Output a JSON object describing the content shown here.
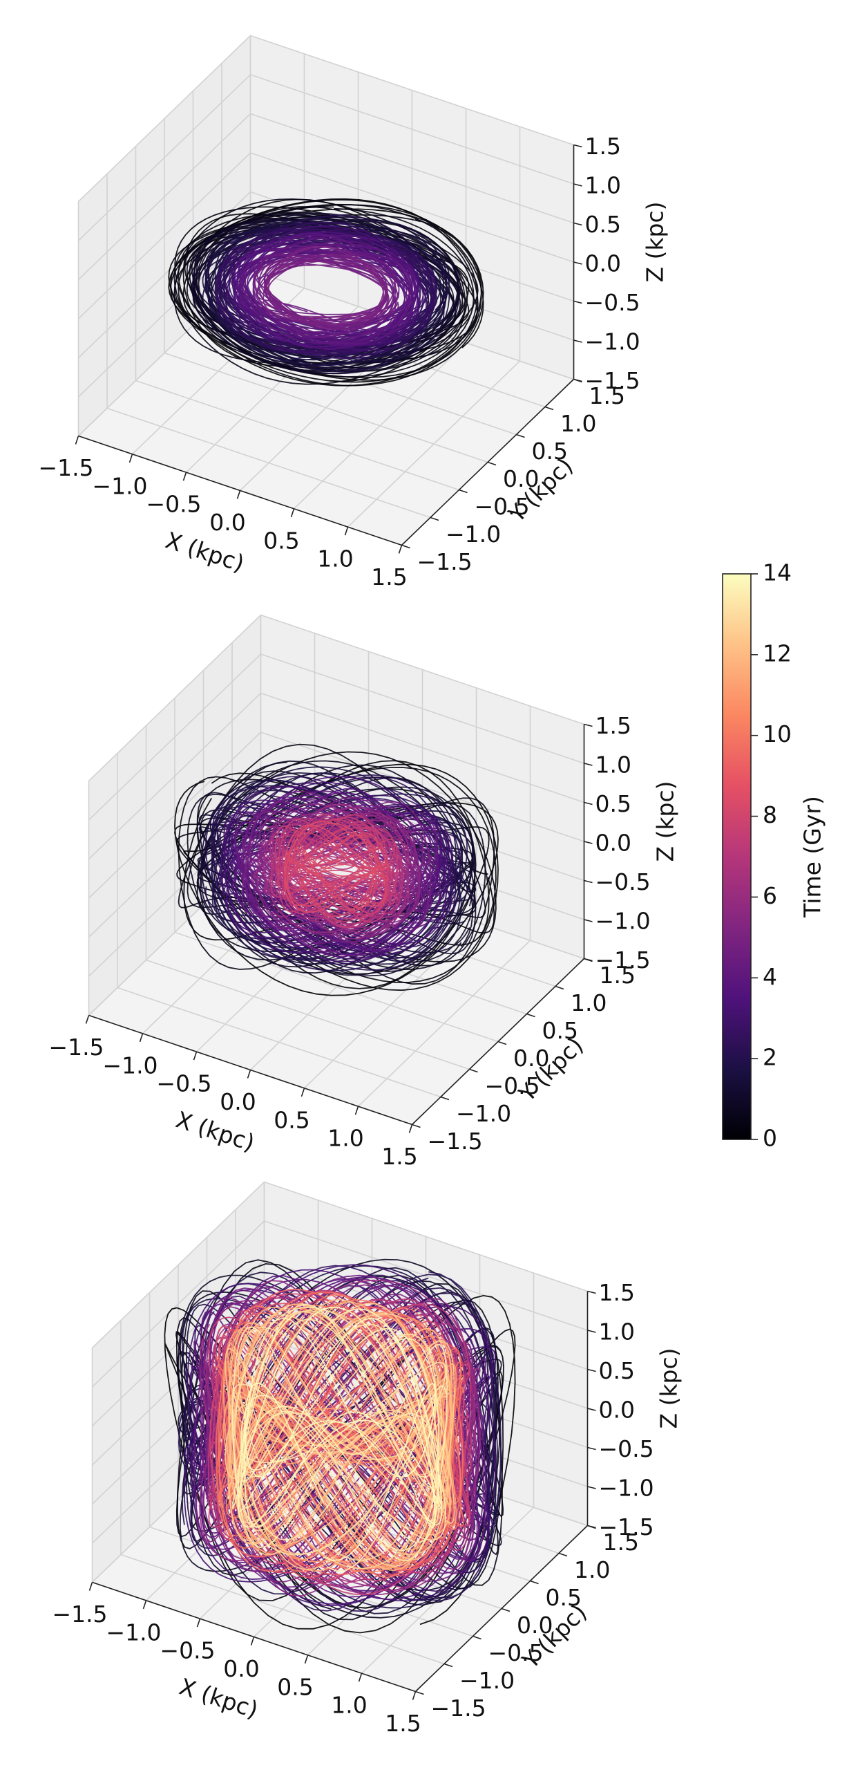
{
  "chart_data": [
    {
      "type": "orbit3d",
      "xlabel": "X (kpc)",
      "ylabel": "Y (kpc)",
      "zlabel": "Z (kpc)",
      "xlim": [
        -1.5,
        1.5
      ],
      "ylim": [
        -1.5,
        1.5
      ],
      "zlim": [
        -1.5,
        1.5
      ],
      "xticks": [
        {
          "value": -1.5,
          "label": "−1.5"
        },
        {
          "value": -1,
          "label": "−1.0"
        },
        {
          "value": -0.5,
          "label": "−0.5"
        },
        {
          "value": 0,
          "label": "0.0"
        },
        0.5,
        {
          "value": 1,
          "label": "1.0"
        },
        1.5
      ],
      "yticks": [
        {
          "value": -1.5,
          "label": "−1.5"
        },
        {
          "value": -1,
          "label": "−1.0"
        },
        {
          "value": -0.5,
          "label": "−0.5"
        },
        {
          "value": 0,
          "label": "0.0"
        },
        0.5,
        {
          "value": 1,
          "label": "1.0"
        },
        1.5
      ],
      "zticks": [
        {
          "value": -1.5,
          "label": "−1.5"
        },
        {
          "value": -1,
          "label": "−1.0"
        },
        {
          "value": -0.5,
          "label": "−0.5"
        },
        {
          "value": 0,
          "label": "0.0"
        },
        0.5,
        {
          "value": 1,
          "label": "1.0"
        },
        1.5
      ]
    },
    {
      "type": "orbit3d",
      "xlabel": "X (kpc)",
      "ylabel": "Y (kpc)",
      "zlabel": "Z (kpc)",
      "xlim": [
        -1.5,
        1.5
      ],
      "ylim": [
        -1.5,
        1.5
      ],
      "zlim": [
        -1.5,
        1.5
      ],
      "xticks": [
        {
          "value": -1.5,
          "label": "−1.5"
        },
        {
          "value": -1,
          "label": "−1.0"
        },
        {
          "value": -0.5,
          "label": "−0.5"
        },
        {
          "value": 0,
          "label": "0.0"
        },
        0.5,
        {
          "value": 1,
          "label": "1.0"
        },
        1.5
      ],
      "yticks": [
        {
          "value": -1.5,
          "label": "−1.5"
        },
        {
          "value": -1,
          "label": "−1.0"
        },
        {
          "value": -0.5,
          "label": "−0.5"
        },
        {
          "value": 0,
          "label": "0.0"
        },
        0.5,
        {
          "value": 1,
          "label": "1.0"
        },
        1.5
      ],
      "zticks": [
        {
          "value": -1.5,
          "label": "−1.5"
        },
        {
          "value": -1,
          "label": "−1.0"
        },
        {
          "value": -0.5,
          "label": "−0.5"
        },
        {
          "value": 0,
          "label": "0.0"
        },
        0.5,
        {
          "value": 1,
          "label": "1.0"
        },
        1.5
      ]
    },
    {
      "type": "orbit3d",
      "xlabel": "X (kpc)",
      "ylabel": "Y (kpc)",
      "zlabel": "Z (kpc)",
      "xlim": [
        -1.5,
        1.5
      ],
      "ylim": [
        -1.5,
        1.5
      ],
      "zlim": [
        -1.5,
        1.5
      ],
      "xticks": [
        {
          "value": -1.5,
          "label": "−1.5"
        },
        {
          "value": -1,
          "label": "−1.0"
        },
        {
          "value": -0.5,
          "label": "−0.5"
        },
        {
          "value": 0,
          "label": "0.0"
        },
        0.5,
        {
          "value": 1,
          "label": "1.0"
        },
        1.5
      ],
      "yticks": [
        {
          "value": -1.5,
          "label": "−1.5"
        },
        {
          "value": -1,
          "label": "−1.0"
        },
        {
          "value": -0.5,
          "label": "−0.5"
        },
        {
          "value": 0,
          "label": "0.0"
        },
        0.5,
        {
          "value": 1,
          "label": "1.0"
        },
        1.5
      ],
      "zticks": [
        {
          "value": -1.5,
          "label": "−1.5"
        },
        {
          "value": -1,
          "label": "−1.0"
        },
        {
          "value": -0.5,
          "label": "−0.5"
        },
        {
          "value": 0,
          "label": "0.0"
        },
        0.5,
        {
          "value": 1,
          "label": "1.0"
        },
        1.5
      ]
    },
    {
      "type": "colorbar",
      "label": "Time (Gyr)",
      "clim": [
        0,
        14
      ],
      "ticks": [
        0,
        2,
        4,
        6,
        8,
        10,
        12,
        14
      ],
      "colormap": [
        "#000004",
        "#1c1044",
        "#4f127b",
        "#812581",
        "#b5367a",
        "#e55064",
        "#fb8761",
        "#fec287",
        "#fcfdbf"
      ]
    }
  ]
}
